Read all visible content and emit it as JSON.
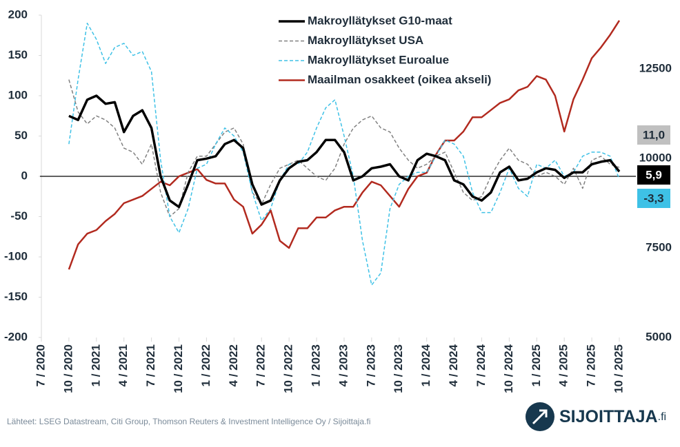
{
  "chart_data": {
    "type": "line",
    "categories": [
      "7 / 2020",
      null,
      null,
      "10 / 2020",
      null,
      null,
      "1 / 2021",
      null,
      null,
      "4 / 2021",
      null,
      null,
      "7 / 2021",
      null,
      null,
      "10 / 2021",
      null,
      null,
      "1 / 2022",
      null,
      null,
      "4 / 2022",
      null,
      null,
      "7 / 2022",
      null,
      null,
      "10 / 2022",
      null,
      null,
      "1 / 2023",
      null,
      null,
      "4 / 2023",
      null,
      null,
      "7 / 2023",
      null,
      null,
      "10 / 2023",
      null,
      null,
      "1 / 2024",
      null,
      null,
      "4 / 2024",
      null,
      null,
      "7 / 2024",
      null,
      null,
      "10 / 2024",
      null,
      null,
      "1 / 2025",
      null,
      null,
      "4 / 2025",
      null,
      null,
      "7 / 2025",
      null,
      null,
      "10 / 2025"
    ],
    "ylim": [
      -200,
      200
    ],
    "yticks": [
      -200,
      -150,
      -100,
      -50,
      0,
      50,
      100,
      150,
      200
    ],
    "y2lim": [
      5000,
      14000
    ],
    "y2ticks": [
      5000,
      7500,
      10000,
      12500
    ],
    "legend": "top",
    "series": [
      {
        "name": "Makroyllätykset G10-maat",
        "color": "#000000",
        "dash": "solid",
        "width": 3.5,
        "values": [
          null,
          null,
          null,
          75,
          70,
          95,
          100,
          90,
          92,
          55,
          75,
          82,
          60,
          0,
          -30,
          -38,
          -10,
          20,
          22,
          25,
          40,
          45,
          35,
          -10,
          -35,
          -30,
          -5,
          10,
          18,
          20,
          30,
          45,
          45,
          30,
          -5,
          0,
          10,
          12,
          15,
          0,
          -5,
          20,
          28,
          25,
          20,
          -5,
          -10,
          -25,
          -30,
          -20,
          5,
          12,
          -5,
          -3,
          5,
          10,
          8,
          -2,
          5,
          5,
          15,
          18,
          20,
          5.9
        ],
        "value_labels": [
          null,
          null,
          null,
          null,
          null,
          null,
          null,
          null,
          null,
          null,
          null,
          null,
          null,
          null,
          null,
          null,
          null,
          null,
          null,
          null,
          null,
          null,
          null,
          null,
          null,
          null,
          null,
          null,
          null,
          null,
          null,
          null,
          null,
          null,
          null,
          null,
          null,
          null,
          null,
          null,
          null,
          null,
          null,
          null,
          null,
          null,
          null,
          null,
          null,
          null,
          null,
          null,
          null,
          null,
          null,
          null,
          null,
          null,
          null,
          null,
          null,
          null,
          null,
          "5,9"
        ]
      },
      {
        "name": "Makroyllätykset USA",
        "color": "#808080",
        "dash": "dashed",
        "width": 1.5,
        "values": [
          null,
          null,
          null,
          120,
          80,
          65,
          75,
          70,
          60,
          35,
          30,
          15,
          40,
          -20,
          -50,
          -40,
          5,
          25,
          25,
          40,
          55,
          60,
          40,
          -20,
          -35,
          -10,
          10,
          15,
          20,
          10,
          0,
          -5,
          10,
          40,
          60,
          70,
          75,
          60,
          55,
          35,
          20,
          10,
          15,
          25,
          30,
          5,
          -20,
          -30,
          -25,
          0,
          20,
          35,
          20,
          15,
          0,
          5,
          0,
          -10,
          10,
          -15,
          20,
          25,
          15,
          11
        ],
        "value_labels": [
          null,
          null,
          null,
          null,
          null,
          null,
          null,
          null,
          null,
          null,
          null,
          null,
          null,
          null,
          null,
          null,
          null,
          null,
          null,
          null,
          null,
          null,
          null,
          null,
          null,
          null,
          null,
          null,
          null,
          null,
          null,
          null,
          null,
          null,
          null,
          null,
          null,
          null,
          null,
          null,
          null,
          null,
          null,
          null,
          null,
          null,
          null,
          null,
          null,
          null,
          null,
          null,
          null,
          null,
          null,
          null,
          null,
          null,
          null,
          null,
          null,
          null,
          null,
          "11,0"
        ]
      },
      {
        "name": "Makroyllätykset Euroalue",
        "color": "#3ec1e6",
        "dash": "dashed",
        "width": 1.5,
        "values": [
          null,
          null,
          null,
          40,
          120,
          190,
          170,
          140,
          160,
          165,
          150,
          155,
          130,
          20,
          -50,
          -70,
          -40,
          10,
          15,
          40,
          60,
          50,
          30,
          -20,
          -55,
          -40,
          -5,
          15,
          15,
          30,
          60,
          85,
          95,
          50,
          0,
          -80,
          -135,
          -120,
          -40,
          -10,
          0,
          5,
          5,
          25,
          45,
          40,
          25,
          -20,
          -45,
          -45,
          -20,
          10,
          -15,
          -25,
          15,
          10,
          20,
          0,
          5,
          25,
          30,
          30,
          25,
          -3.3
        ],
        "value_labels": [
          null,
          null,
          null,
          null,
          null,
          null,
          null,
          null,
          null,
          null,
          null,
          null,
          null,
          null,
          null,
          null,
          null,
          null,
          null,
          null,
          null,
          null,
          null,
          null,
          null,
          null,
          null,
          null,
          null,
          null,
          null,
          null,
          null,
          null,
          null,
          null,
          null,
          null,
          null,
          null,
          null,
          null,
          null,
          null,
          null,
          null,
          null,
          null,
          null,
          null,
          null,
          null,
          null,
          null,
          null,
          null,
          null,
          null,
          null,
          null,
          null,
          null,
          null,
          "-3,3"
        ]
      },
      {
        "name": "Maailman osakkeet (oikea akseli)",
        "color": "#b22a1f",
        "dash": "solid",
        "width": 2.5,
        "axis": "y2",
        "values": [
          null,
          null,
          null,
          6900,
          7600,
          7900,
          8000,
          8250,
          8450,
          8750,
          8850,
          8950,
          9150,
          9350,
          9250,
          9500,
          9600,
          9700,
          9400,
          9300,
          9300,
          8850,
          8650,
          7900,
          8150,
          8550,
          7700,
          7500,
          8050,
          8050,
          8350,
          8350,
          8550,
          8650,
          8650,
          9050,
          9350,
          9250,
          8950,
          8650,
          9150,
          9500,
          9600,
          10100,
          10500,
          10500,
          10750,
          11150,
          11150,
          11350,
          11550,
          11650,
          11900,
          12000,
          12300,
          12200,
          11750,
          10750,
          11650,
          12200,
          12800,
          13100,
          13450,
          13850
        ]
      }
    ],
    "source": "Lähteet: LSEG Datastream, Citi Group, Thomson Reuters & Investment Intelligence Oy / Sijoittaja.fi",
    "logo": "SIJOITTAJA",
    "logo_suffix": ".fi"
  }
}
